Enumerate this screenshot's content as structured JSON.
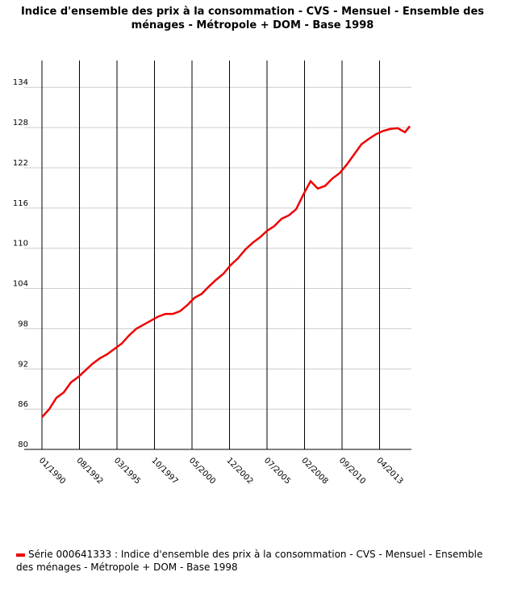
{
  "chart_data": {
    "type": "line",
    "title": "Indice d'ensemble des prix à la consommation - CVS - Mensuel - Ensemble des ménages - Métropole + DOM - Base 1998",
    "x": [
      "01/1990",
      "07/1990",
      "01/1991",
      "07/1991",
      "01/1992",
      "07/1992",
      "01/1993",
      "07/1993",
      "01/1994",
      "07/1994",
      "01/1995",
      "07/1995",
      "01/1996",
      "07/1996",
      "01/1997",
      "07/1997",
      "01/1998",
      "07/1998",
      "01/1999",
      "07/1999",
      "01/2000",
      "07/2000",
      "01/2001",
      "07/2001",
      "01/2002",
      "07/2002",
      "01/2003",
      "07/2003",
      "01/2004",
      "07/2004",
      "01/2005",
      "07/2005",
      "01/2006",
      "07/2006",
      "01/2007",
      "07/2007",
      "01/2008",
      "07/2008",
      "01/2009",
      "07/2009",
      "01/2010",
      "07/2010",
      "01/2011",
      "07/2011",
      "01/2012",
      "07/2012",
      "01/2013",
      "07/2013",
      "01/2014",
      "07/2014",
      "01/2015",
      "05/2015"
    ],
    "series": [
      {
        "name": "Série 000641333 : Indice d'ensemble des prix à la consommation - CVS - Mensuel - Ensemble des ménages - Métropole + DOM - Base 1998",
        "color": "#ee0000",
        "values": [
          84.8,
          86,
          87.7,
          88.5,
          90,
          90.8,
          91.8,
          92.8,
          93.6,
          94.2,
          95,
          95.8,
          97,
          98,
          98.6,
          99.2,
          99.8,
          100.2,
          100.2,
          100.6,
          101.5,
          102.6,
          103.2,
          104.3,
          105.3,
          106.2,
          107.5,
          108.5,
          109.8,
          110.8,
          111.6,
          112.6,
          113.3,
          114.4,
          114.9,
          115.8,
          118,
          120,
          118.9,
          119.3,
          120.4,
          121.2,
          122.5,
          124,
          125.5,
          126.3,
          127,
          127.5,
          127.8,
          127.9,
          127.3,
          128.2
        ]
      }
    ],
    "xticks": [
      "01/1990",
      "08/1992",
      "03/1995",
      "10/1997",
      "05/2000",
      "12/2002",
      "07/2005",
      "02/2008",
      "09/2010",
      "04/2013"
    ],
    "ylim": [
      80,
      138
    ],
    "yticks": [
      80,
      86,
      92,
      98,
      104,
      110,
      116,
      122,
      128,
      134
    ],
    "grid": true
  }
}
